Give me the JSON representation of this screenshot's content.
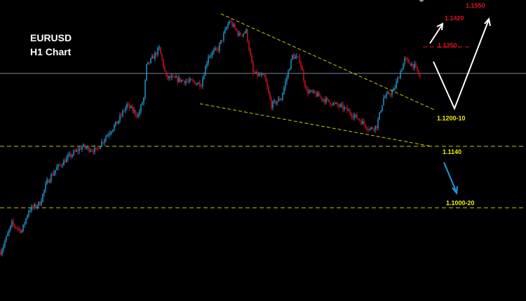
{
  "header": {
    "symbol": "EURUSD",
    "timeframe": "H1 Chart"
  },
  "colors": {
    "background": "#000000",
    "bull_candle": "#1f8fc4",
    "bear_candle": "#c01020",
    "trendline": "#c8c800",
    "support_line": "#c8c800",
    "current_price_line": "#7a8a99",
    "target_line": "#e0141e",
    "bull_arrow": "#ffffff",
    "bear_arrow": "#1f9ad6"
  },
  "chart_data": {
    "type": "candlestick",
    "title": "EURUSD H1 Chart",
    "grid": false,
    "x_unit": "bar index (approx.)",
    "price_path": [
      [
        0,
        1.0917
      ],
      [
        8,
        1.0976
      ],
      [
        15,
        1.0961
      ],
      [
        20,
        1.1005
      ],
      [
        28,
        1.102
      ],
      [
        33,
        1.1065
      ],
      [
        40,
        1.1094
      ],
      [
        48,
        1.1116
      ],
      [
        58,
        1.1139
      ],
      [
        68,
        1.1131
      ],
      [
        75,
        1.1161
      ],
      [
        83,
        1.119
      ],
      [
        90,
        1.1227
      ],
      [
        98,
        1.1205
      ],
      [
        102,
        1.1242
      ],
      [
        104,
        1.1309
      ],
      [
        113,
        1.1346
      ],
      [
        118,
        1.1286
      ],
      [
        130,
        1.1279
      ],
      [
        143,
        1.1272
      ],
      [
        148,
        1.1331
      ],
      [
        155,
        1.1346
      ],
      [
        163,
        1.1405
      ],
      [
        170,
        1.1375
      ],
      [
        175,
        1.1383
      ],
      [
        180,
        1.1294
      ],
      [
        188,
        1.1286
      ],
      [
        193,
        1.1227
      ],
      [
        200,
        1.1242
      ],
      [
        208,
        1.1331
      ],
      [
        213,
        1.1323
      ],
      [
        218,
        1.1257
      ],
      [
        225,
        1.1249
      ],
      [
        233,
        1.1235
      ],
      [
        245,
        1.122
      ],
      [
        255,
        1.1198
      ],
      [
        263,
        1.1176
      ],
      [
        268,
        1.1183
      ],
      [
        273,
        1.1242
      ],
      [
        280,
        1.1257
      ],
      [
        288,
        1.1323
      ],
      [
        295,
        1.1309
      ],
      [
        299,
        1.1286
      ]
    ],
    "trendlines": [
      {
        "name": "upper",
        "from": [
          157,
          1.142
        ],
        "to": [
          310,
          1.1216
        ]
      },
      {
        "name": "lower",
        "from": [
          142,
          1.123
        ],
        "to": [
          307,
          1.114
        ]
      }
    ],
    "horizontal_levels": [
      {
        "price": 1.114,
        "style": "dashed",
        "color": "#c8c800"
      },
      {
        "price": 1.101,
        "style": "dashed",
        "color": "#c8c800"
      },
      {
        "price": 1.1294,
        "style": "solid",
        "color": "#7a8a99"
      },
      {
        "price": 1.135,
        "style": "dashed",
        "color": "#e0141e"
      }
    ]
  },
  "annotations": {
    "target_1550": "1.1550",
    "target_1420": "1.1420",
    "target_1350": "1.1350",
    "support_1200": "1.1200-10",
    "support_1140": "1.1140",
    "target_1000": "1.1000-20"
  }
}
